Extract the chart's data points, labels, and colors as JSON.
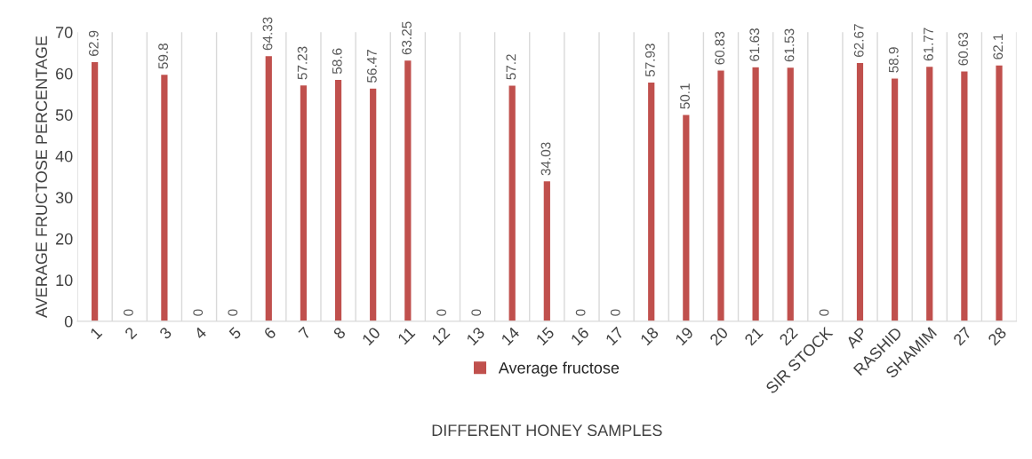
{
  "chart_data": {
    "type": "bar",
    "categories": [
      "1",
      "2",
      "3",
      "4",
      "5",
      "6",
      "7",
      "8",
      "10",
      "11",
      "12",
      "13",
      "14",
      "15",
      "16",
      "17",
      "18",
      "19",
      "20",
      "21",
      "22",
      "SIR STOCK",
      "AP",
      "RASHID",
      "SHAMIM",
      "27",
      "28"
    ],
    "series": [
      {
        "name": "Average fructose",
        "color": "#c0504d",
        "values": [
          62.9,
          0,
          59.8,
          0,
          0,
          64.33,
          57.23,
          58.6,
          56.47,
          63.25,
          0,
          0,
          57.2,
          34.03,
          0,
          0,
          57.93,
          50.1,
          60.83,
          61.63,
          61.53,
          0,
          62.67,
          58.9,
          61.77,
          60.63,
          62.1
        ]
      }
    ],
    "xlabel": "DIFFERENT HONEY SAMPLES",
    "ylabel": "AVERAGE FRUCTOSE PERCENTAGE",
    "ylim": [
      0,
      70
    ],
    "yticks": [
      0,
      10,
      20,
      30,
      40,
      50,
      60,
      70
    ],
    "grid": "x",
    "legend": "bottom",
    "data_labels": true
  }
}
